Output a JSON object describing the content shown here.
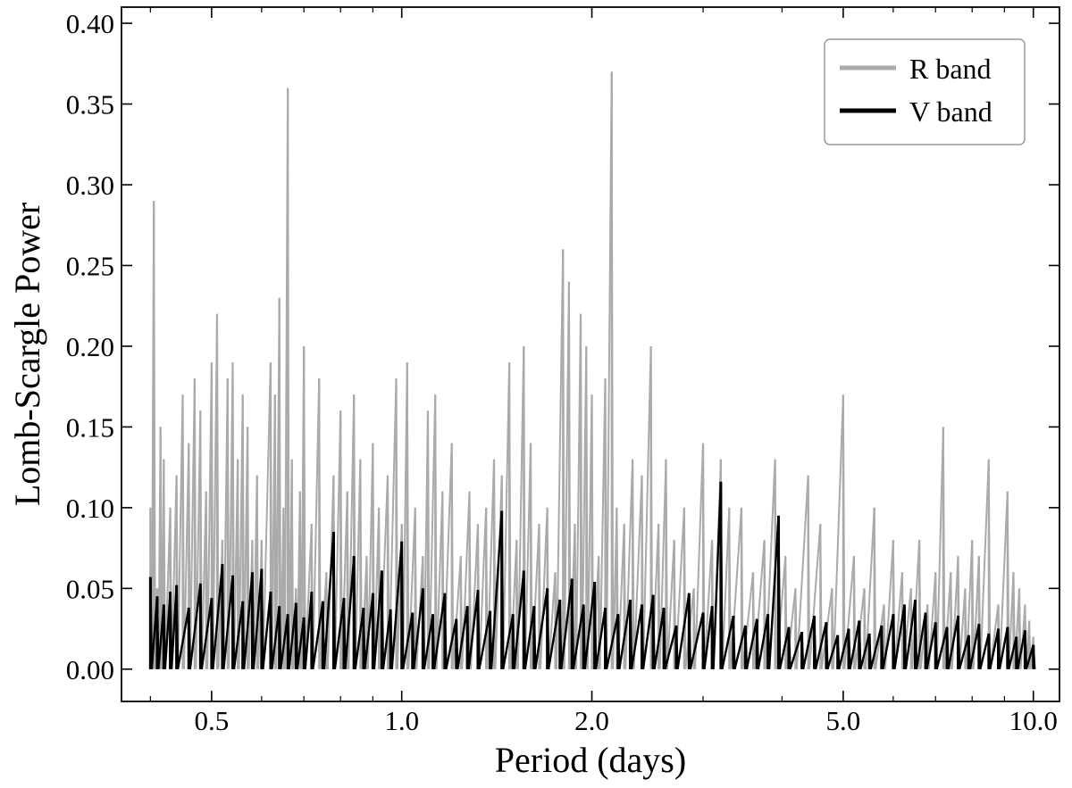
{
  "chart_data": {
    "type": "line",
    "xlabel": "Period (days)",
    "ylabel": "Lomb-Scargle Power",
    "xscale": "log",
    "xlim": [
      0.36,
      11.0
    ],
    "ylim": [
      -0.02,
      0.41
    ],
    "grid": false,
    "legend_position": "top-right",
    "xticks": [
      {
        "value": 0.5,
        "label": "0.5"
      },
      {
        "value": 1.0,
        "label": "1.0"
      },
      {
        "value": 2.0,
        "label": "2.0"
      },
      {
        "value": 5.0,
        "label": "5.0"
      },
      {
        "value": 10.0,
        "label": "10.0"
      }
    ],
    "yticks": [
      {
        "value": 0.0,
        "label": "0.00"
      },
      {
        "value": 0.05,
        "label": "0.05"
      },
      {
        "value": 0.1,
        "label": "0.10"
      },
      {
        "value": 0.15,
        "label": "0.15"
      },
      {
        "value": 0.2,
        "label": "0.20"
      },
      {
        "value": 0.25,
        "label": "0.25"
      },
      {
        "value": 0.3,
        "label": "0.30"
      },
      {
        "value": 0.35,
        "label": "0.35"
      },
      {
        "value": 0.4,
        "label": "0.40"
      }
    ],
    "series": [
      {
        "name": "R band",
        "color": "#aaaaaa",
        "x": [
          0.4,
          0.405,
          0.41,
          0.415,
          0.42,
          0.43,
          0.44,
          0.45,
          0.46,
          0.47,
          0.48,
          0.49,
          0.5,
          0.51,
          0.52,
          0.53,
          0.54,
          0.55,
          0.56,
          0.57,
          0.58,
          0.59,
          0.6,
          0.62,
          0.63,
          0.64,
          0.65,
          0.66,
          0.67,
          0.68,
          0.69,
          0.7,
          0.72,
          0.74,
          0.76,
          0.78,
          0.8,
          0.82,
          0.84,
          0.86,
          0.88,
          0.9,
          0.92,
          0.95,
          0.98,
          1.0,
          1.02,
          1.05,
          1.08,
          1.1,
          1.13,
          1.16,
          1.2,
          1.24,
          1.28,
          1.32,
          1.36,
          1.4,
          1.44,
          1.48,
          1.52,
          1.56,
          1.6,
          1.65,
          1.7,
          1.75,
          1.8,
          1.84,
          1.88,
          1.92,
          1.96,
          2.0,
          2.05,
          2.1,
          2.15,
          2.19,
          2.25,
          2.32,
          2.4,
          2.48,
          2.55,
          2.62,
          2.7,
          2.8,
          2.9,
          3.0,
          3.1,
          3.2,
          3.3,
          3.45,
          3.6,
          3.75,
          3.9,
          4.05,
          4.2,
          4.4,
          4.6,
          4.8,
          5.0,
          5.2,
          5.4,
          5.6,
          5.8,
          6.0,
          6.2,
          6.4,
          6.6,
          6.8,
          7.0,
          7.2,
          7.4,
          7.6,
          7.8,
          8.0,
          8.2,
          8.5,
          8.8,
          9.1,
          9.3,
          9.5,
          9.7,
          9.85,
          10.0
        ],
        "y": [
          0.1,
          0.29,
          0.05,
          0.15,
          0.13,
          0.1,
          0.12,
          0.17,
          0.14,
          0.18,
          0.16,
          0.11,
          0.19,
          0.22,
          0.08,
          0.18,
          0.19,
          0.13,
          0.17,
          0.15,
          0.08,
          0.12,
          0.08,
          0.19,
          0.17,
          0.23,
          0.1,
          0.36,
          0.13,
          0.05,
          0.11,
          0.2,
          0.09,
          0.18,
          0.06,
          0.12,
          0.16,
          0.11,
          0.17,
          0.13,
          0.07,
          0.14,
          0.1,
          0.12,
          0.18,
          0.09,
          0.19,
          0.1,
          0.07,
          0.16,
          0.17,
          0.11,
          0.14,
          0.07,
          0.11,
          0.09,
          0.1,
          0.13,
          0.12,
          0.19,
          0.08,
          0.2,
          0.14,
          0.09,
          0.1,
          0.06,
          0.26,
          0.24,
          0.09,
          0.22,
          0.2,
          0.17,
          0.07,
          0.18,
          0.37,
          0.1,
          0.09,
          0.13,
          0.12,
          0.2,
          0.09,
          0.13,
          0.08,
          0.1,
          0.05,
          0.14,
          0.08,
          0.13,
          0.1,
          0.1,
          0.06,
          0.08,
          0.13,
          0.07,
          0.05,
          0.12,
          0.09,
          0.05,
          0.17,
          0.07,
          0.05,
          0.1,
          0.04,
          0.08,
          0.06,
          0.05,
          0.08,
          0.04,
          0.06,
          0.15,
          0.06,
          0.07,
          0.05,
          0.08,
          0.07,
          0.13,
          0.04,
          0.11,
          0.06,
          0.05,
          0.04,
          0.03,
          0.02
        ]
      },
      {
        "name": "V band",
        "color": "#000000",
        "x": [
          0.4,
          0.41,
          0.42,
          0.43,
          0.44,
          0.46,
          0.48,
          0.5,
          0.52,
          0.54,
          0.56,
          0.58,
          0.6,
          0.62,
          0.64,
          0.66,
          0.68,
          0.7,
          0.72,
          0.75,
          0.78,
          0.81,
          0.84,
          0.87,
          0.9,
          0.93,
          0.96,
          1.0,
          1.04,
          1.08,
          1.12,
          1.17,
          1.22,
          1.27,
          1.32,
          1.38,
          1.44,
          1.5,
          1.56,
          1.62,
          1.7,
          1.78,
          1.86,
          1.94,
          2.02,
          2.1,
          2.2,
          2.3,
          2.4,
          2.5,
          2.6,
          2.72,
          2.85,
          3.0,
          3.1,
          3.2,
          3.35,
          3.5,
          3.65,
          3.8,
          3.95,
          4.1,
          4.3,
          4.5,
          4.7,
          4.9,
          5.1,
          5.3,
          5.5,
          5.75,
          6.0,
          6.25,
          6.5,
          6.75,
          7.0,
          7.3,
          7.6,
          7.9,
          8.2,
          8.5,
          8.8,
          9.1,
          9.4,
          9.7,
          10.0
        ],
        "y": [
          0.057,
          0.045,
          0.04,
          0.048,
          0.052,
          0.038,
          0.053,
          0.044,
          0.065,
          0.058,
          0.042,
          0.06,
          0.062,
          0.048,
          0.039,
          0.034,
          0.041,
          0.032,
          0.048,
          0.042,
          0.085,
          0.044,
          0.07,
          0.038,
          0.047,
          0.061,
          0.037,
          0.079,
          0.035,
          0.05,
          0.034,
          0.047,
          0.031,
          0.039,
          0.049,
          0.036,
          0.098,
          0.034,
          0.061,
          0.039,
          0.05,
          0.043,
          0.056,
          0.04,
          0.054,
          0.038,
          0.034,
          0.043,
          0.04,
          0.046,
          0.038,
          0.027,
          0.047,
          0.035,
          0.039,
          0.116,
          0.033,
          0.027,
          0.031,
          0.034,
          0.095,
          0.026,
          0.023,
          0.033,
          0.029,
          0.021,
          0.025,
          0.03,
          0.022,
          0.027,
          0.034,
          0.04,
          0.043,
          0.035,
          0.029,
          0.026,
          0.033,
          0.021,
          0.028,
          0.022,
          0.025,
          0.026,
          0.02,
          0.024,
          0.015
        ]
      }
    ]
  }
}
